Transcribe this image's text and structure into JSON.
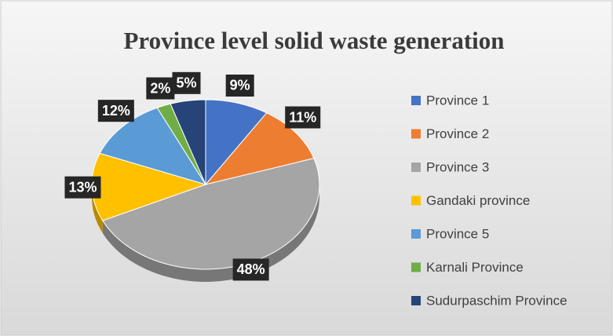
{
  "chart_data": {
    "type": "pie3d",
    "title": "Province level solid waste generation",
    "categories": [
      "Province 1",
      "Province 2",
      "Province 3",
      "Gandaki province",
      "Province 5",
      "Karnali Province",
      "Sudurpaschim Province"
    ],
    "values": [
      9,
      11,
      48,
      13,
      12,
      2,
      5
    ],
    "value_labels": [
      "9%",
      "11%",
      "48%",
      "13%",
      "12%",
      "2%",
      "5%"
    ],
    "colors": [
      "#4472c4",
      "#ed7d31",
      "#a5a5a5",
      "#ffc000",
      "#5b9bd5",
      "#70ad47",
      "#264478"
    ],
    "legend": "right"
  }
}
